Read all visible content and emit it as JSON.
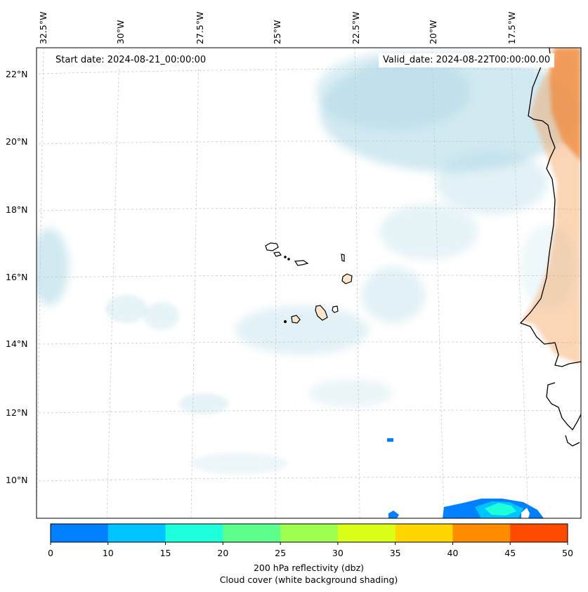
{
  "map": {
    "start_date": "Start date: 2024-08-21_00:00:00",
    "valid_date": "Valid_date: 2024-08-22T00:00:00.00",
    "lon_labels": [
      "32.5°W",
      "30°W",
      "27.5°W",
      "25°W",
      "22.5°W",
      "20°W",
      "17.5°W"
    ],
    "lat_labels": [
      "22°N",
      "20°N",
      "18°N",
      "16°N",
      "14°N",
      "12°N",
      "10°N"
    ],
    "gridlines": true,
    "features": [
      "Cape Verde islands",
      "West African coastline",
      "cloud cover shading",
      "reflectivity band"
    ],
    "colors": {
      "cloud": "#add8e6",
      "land_warm": "#f4a460",
      "coast": "#000000"
    }
  },
  "colorbar": {
    "ticks": [
      "0",
      "10",
      "15",
      "20",
      "25",
      "30",
      "35",
      "40",
      "45",
      "50"
    ],
    "colors": [
      "#0080ff",
      "#00c4ff",
      "#1effdc",
      "#5cff8c",
      "#9eff50",
      "#dcff1a",
      "#ffd600",
      "#ff8c00",
      "#ff4b00"
    ],
    "label": "200 hPa reflectivity (dbz)",
    "sublabel": "Cloud cover (white background shading)"
  }
}
